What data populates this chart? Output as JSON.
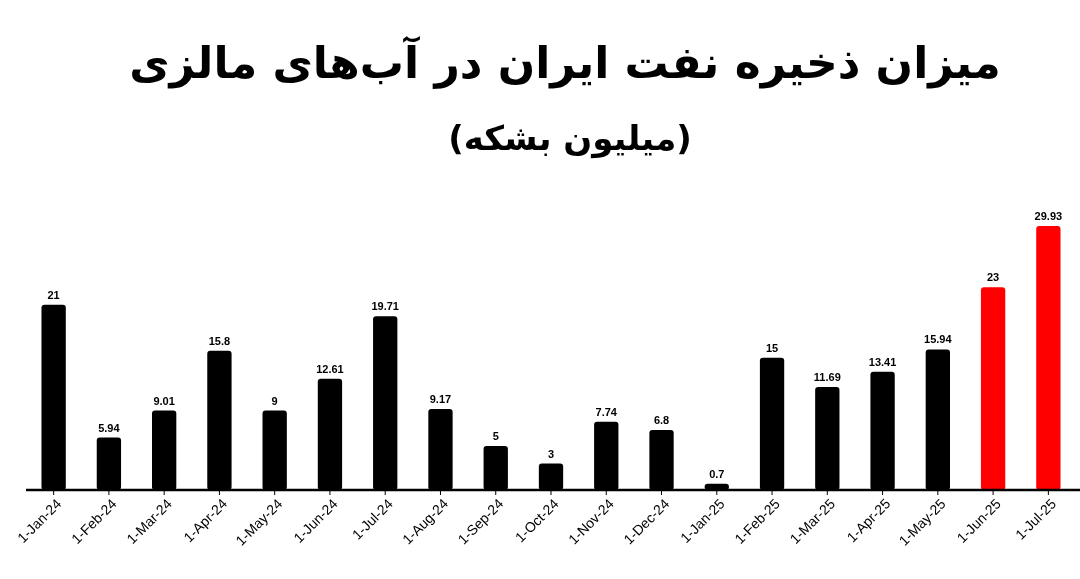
{
  "chart_data": {
    "type": "bar",
    "title": "میزان ذخیره نفت ایران در آب‌های مالزی",
    "subtitle": "(میلیون بشکه)",
    "categories": [
      "1-Jan-24",
      "1-Feb-24",
      "1-Mar-24",
      "1-Apr-24",
      "1-May-24",
      "1-Jun-24",
      "1-Jul-24",
      "1-Aug-24",
      "1-Sep-24",
      "1-Oct-24",
      "1-Nov-24",
      "1-Dec-24",
      "1-Jan-25",
      "1-Feb-25",
      "1-Mar-25",
      "1-Apr-25",
      "1-May-25",
      "1-Jun-25",
      "1-Jul-25"
    ],
    "values": [
      21,
      5.94,
      9.01,
      15.8,
      9,
      12.61,
      19.71,
      9.17,
      5,
      3,
      7.74,
      6.8,
      0.7,
      15,
      11.69,
      13.41,
      15.94,
      23,
      29.93
    ],
    "colors": [
      "#000000",
      "#000000",
      "#000000",
      "#000000",
      "#000000",
      "#000000",
      "#000000",
      "#000000",
      "#000000",
      "#000000",
      "#000000",
      "#000000",
      "#000000",
      "#000000",
      "#000000",
      "#000000",
      "#000000",
      "#ff0000",
      "#ff0000"
    ],
    "data_labels": true
  }
}
